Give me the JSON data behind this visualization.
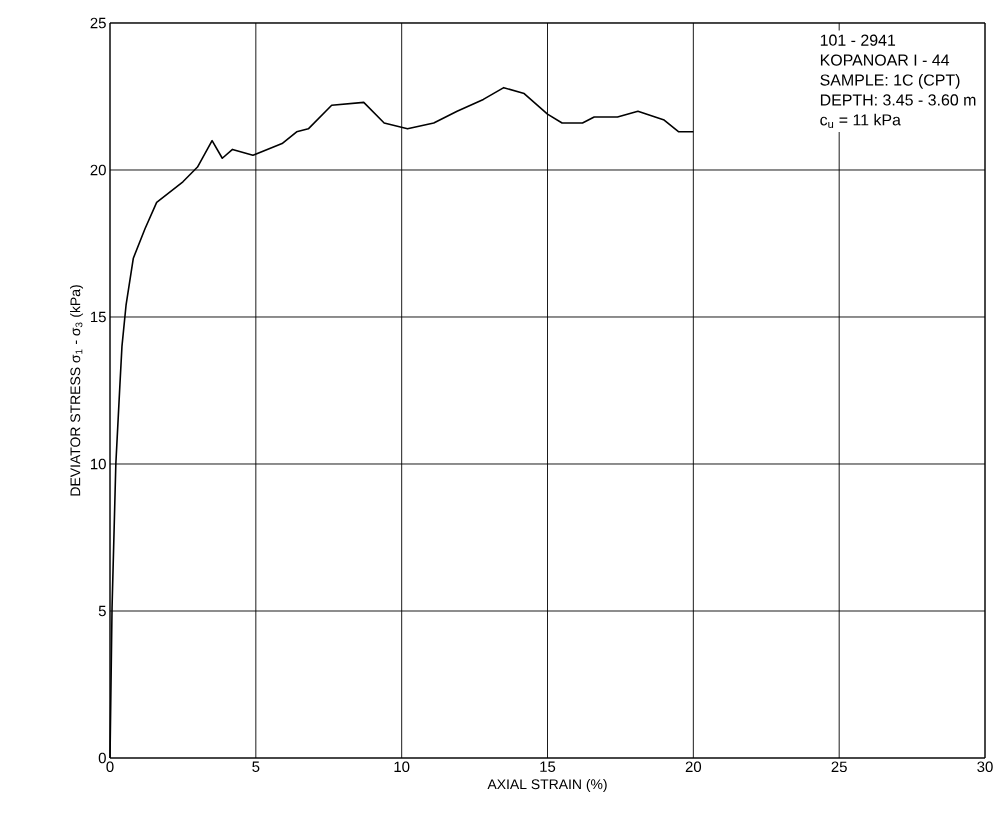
{
  "chart_data": {
    "type": "line",
    "xlabel": "AXIAL STRAIN (%)",
    "ylabel": "DEVIATOR STRESS    σ$_{1}$ - σ$_{3}$    (kPa)",
    "x": [
      0,
      0.07,
      0.2,
      0.34,
      0.41,
      0.55,
      0.8,
      1.2,
      1.6,
      2.5,
      3.0,
      3.5,
      3.85,
      4.2,
      4.9,
      5.9,
      6.4,
      6.8,
      7.6,
      8.7,
      9.4,
      10.2,
      11.1,
      11.9,
      12.8,
      13.5,
      14.2,
      15.0,
      15.5,
      16.2,
      16.6,
      17.4,
      18.1,
      19.0,
      19.5,
      20.0
    ],
    "series": [
      {
        "color": "#000000",
        "values": [
          0,
          5.1,
          10,
          12.7,
          14.0,
          15.4,
          17.0,
          18.0,
          18.9,
          19.6,
          20.1,
          21.0,
          20.4,
          20.7,
          20.5,
          20.9,
          21.3,
          21.4,
          22.2,
          22.3,
          21.6,
          21.4,
          21.6,
          22.0,
          22.4,
          22.8,
          22.6,
          21.9,
          21.6,
          21.6,
          21.8,
          21.8,
          22.0,
          21.7,
          21.3,
          21.3
        ]
      }
    ],
    "xlim": [
      0,
      30
    ],
    "ylim": [
      0,
      25
    ],
    "xticks": [
      0,
      5,
      10,
      15,
      20,
      25,
      30
    ],
    "yticks": [
      0,
      5,
      10,
      15,
      20,
      25
    ],
    "grid": true,
    "marker": "none",
    "line_style": "solid",
    "annotations": [
      "101 - 2941",
      "KOPANOAR I - 44",
      "SAMPLE:  1C  (CPT)",
      "DEPTH:  3.45 - 3.60 m",
      "c$_{u}$ = 11 kPa"
    ]
  }
}
